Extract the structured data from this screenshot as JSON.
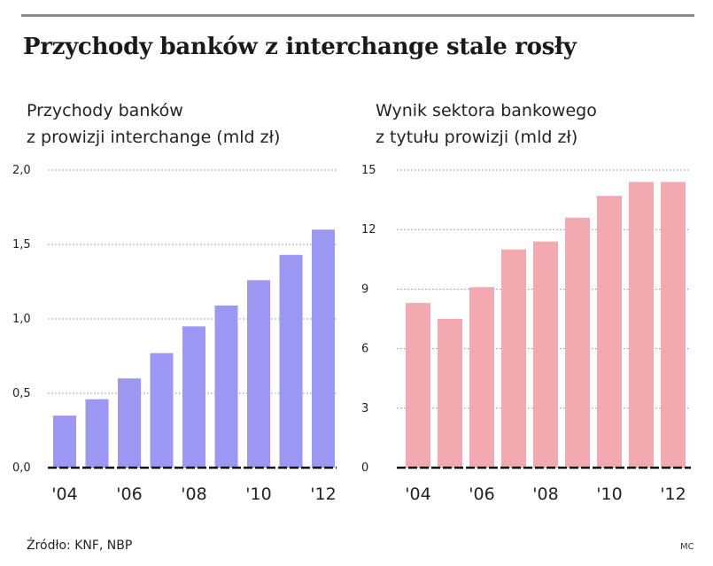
{
  "headline": "Przychody banków z interchange stale rosły",
  "source": "Źródło: KNF, NBP",
  "credit": "MC",
  "colors": {
    "left_bar": "#9d97f4",
    "right_bar": "#f2aab0",
    "grid": "#888888",
    "baseline": "#111111"
  },
  "chart_data": [
    {
      "type": "bar",
      "title_lines": [
        "Przychody banków",
        "z prowizji interchange (mld zł)"
      ],
      "categories": [
        "2004",
        "2005",
        "2006",
        "2007",
        "2008",
        "2009",
        "2010",
        "2011",
        "2012"
      ],
      "values": [
        0.35,
        0.46,
        0.6,
        0.77,
        0.95,
        1.09,
        1.26,
        1.43,
        1.6
      ],
      "ylim": [
        0,
        2.0
      ],
      "yticks": [
        "2,0",
        "1,5",
        "1,0",
        "0,5",
        "0,0"
      ],
      "ytick_values": [
        2.0,
        1.5,
        1.0,
        0.5,
        0.0
      ],
      "xtick_labels": [
        "'04",
        "'06",
        "'08",
        "'10",
        "'12"
      ],
      "xtick_indices": [
        0,
        2,
        4,
        6,
        8
      ],
      "grid": true
    },
    {
      "type": "bar",
      "title_lines": [
        "Wynik sektora bankowego",
        "z tytułu prowizji (mld zł)"
      ],
      "categories": [
        "2004",
        "2005",
        "2006",
        "2007",
        "2008",
        "2009",
        "2010",
        "2011",
        "2012"
      ],
      "values": [
        8.3,
        7.5,
        9.1,
        11.0,
        11.4,
        12.6,
        13.7,
        14.4,
        14.4
      ],
      "ylim": [
        0,
        15
      ],
      "yticks": [
        "15",
        "12",
        "9",
        "6",
        "3",
        "0"
      ],
      "ytick_values": [
        15,
        12,
        9,
        6,
        3,
        0
      ],
      "xtick_labels": [
        "'04",
        "'06",
        "'08",
        "'10",
        "'12"
      ],
      "xtick_indices": [
        0,
        2,
        4,
        6,
        8
      ],
      "grid": true
    }
  ]
}
